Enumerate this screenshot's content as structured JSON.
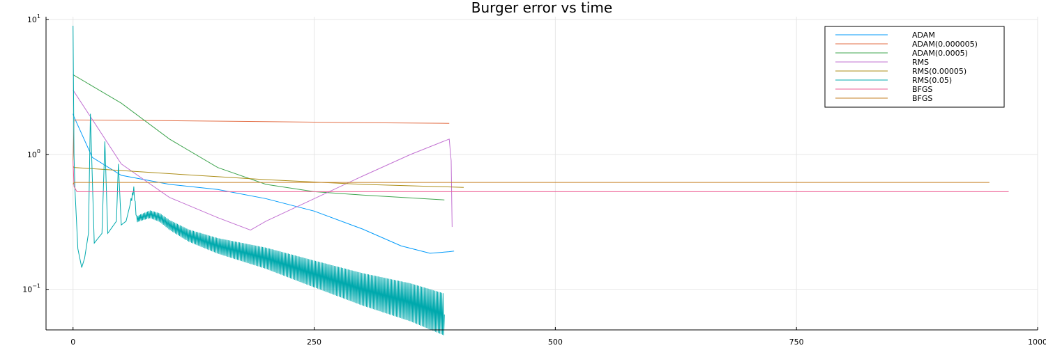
{
  "chart_data": {
    "type": "line",
    "title": "Burger error vs time",
    "xlabel": "",
    "ylabel": "",
    "xlim": [
      -28,
      1000
    ],
    "ylim": [
      0.05,
      10.5
    ],
    "yscale": "log",
    "grid": true,
    "legend_position": "top-right",
    "x_ticks": [
      0,
      250,
      500,
      750,
      1000
    ],
    "x_tick_labels": [
      "0",
      "250",
      "500",
      "750",
      "1000"
    ],
    "y_ticks": [
      {
        "value": 0.1,
        "base": "10",
        "exp": "−1"
      },
      {
        "value": 1,
        "base": "10",
        "exp": "0"
      },
      {
        "value": 10,
        "base": "10",
        "exp": "1"
      }
    ],
    "series": [
      {
        "name": "ADAM",
        "color": "#009AFA",
        "x": [
          0,
          1,
          20,
          50,
          100,
          150,
          200,
          250,
          300,
          340,
          370,
          390,
          395
        ],
        "y": [
          2.0,
          1.9,
          0.95,
          0.7,
          0.6,
          0.55,
          0.47,
          0.38,
          0.28,
          0.21,
          0.185,
          0.19,
          0.192
        ]
      },
      {
        "name": "ADAM(0.000005)",
        "color": "#E36F47",
        "x": [
          0,
          1,
          2,
          100,
          200,
          300,
          390
        ],
        "y": [
          0.9,
          1.8,
          1.8,
          1.78,
          1.75,
          1.72,
          1.7
        ]
      },
      {
        "name": "ADAM(0.0005)",
        "color": "#3EA44E",
        "x": [
          0,
          50,
          100,
          150,
          200,
          250,
          300,
          385
        ],
        "y": [
          3.9,
          2.4,
          1.3,
          0.8,
          0.6,
          0.53,
          0.5,
          0.46
        ]
      },
      {
        "name": "RMS",
        "color": "#C271D2",
        "x": [
          0,
          25,
          50,
          100,
          150,
          184,
          200,
          250,
          300,
          350,
          390,
          392,
          393
        ],
        "y": [
          3.0,
          1.6,
          0.85,
          0.48,
          0.34,
          0.275,
          0.32,
          0.47,
          0.69,
          1.0,
          1.3,
          0.9,
          0.29
        ]
      },
      {
        "name": "RMS(0.00005)",
        "color": "#AC8D18",
        "x": [
          0,
          1,
          100,
          200,
          300,
          405
        ],
        "y": [
          0.82,
          0.8,
          0.72,
          0.65,
          0.6,
          0.57
        ]
      },
      {
        "name": "RMS(0.05)",
        "color": "#00A9AD",
        "x": [
          0,
          1,
          2,
          5,
          9,
          12,
          16,
          18,
          22,
          30,
          33,
          36,
          45,
          47,
          50,
          55,
          63,
          66,
          70,
          80,
          90,
          100,
          120,
          150,
          200,
          250,
          300,
          350,
          385
        ],
        "y": [
          9.0,
          1.0,
          0.55,
          0.2,
          0.145,
          0.17,
          0.26,
          2.0,
          0.22,
          0.26,
          1.25,
          0.26,
          0.32,
          0.85,
          0.3,
          0.32,
          0.55,
          0.33,
          0.34,
          0.36,
          0.34,
          0.3,
          0.25,
          0.21,
          0.17,
          0.13,
          0.1,
          0.08,
          0.065
        ],
        "noise_band": true
      },
      {
        "name": "BFGS",
        "color": "#ED5D93",
        "x": [
          0,
          1,
          4,
          200,
          500,
          970
        ],
        "y": [
          0.9,
          0.58,
          0.53,
          0.53,
          0.53,
          0.53
        ]
      },
      {
        "name": "BFGS",
        "color": "#C68125",
        "x": [
          0,
          1,
          3,
          200,
          500,
          950
        ],
        "y": [
          0.6,
          0.62,
          0.62,
          0.62,
          0.62,
          0.62
        ]
      }
    ]
  }
}
